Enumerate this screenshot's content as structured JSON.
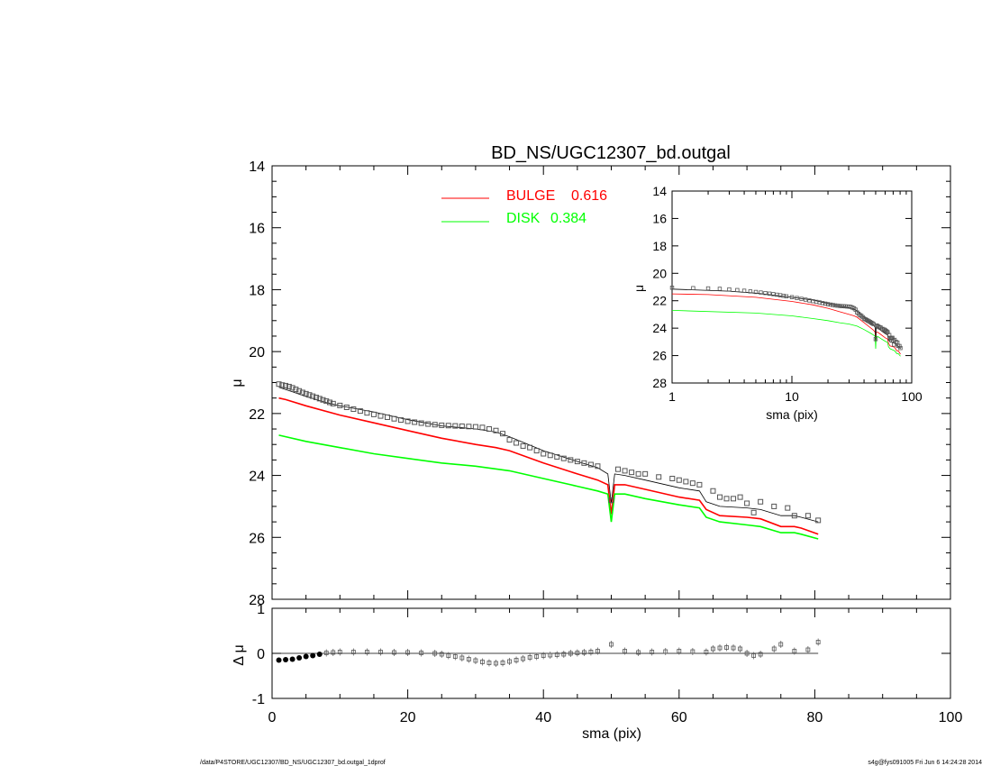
{
  "chart_data": [
    {
      "type": "line",
      "title": "BD_NS/UGC12307_bd.outgal",
      "xlabel": "sma (pix)",
      "ylabel": "μ",
      "xlim": [
        0,
        100
      ],
      "ylim": [
        28,
        14
      ],
      "y_inverted": true,
      "xticks": [
        "0",
        "20",
        "40",
        "60",
        "80",
        "100"
      ],
      "yticks": [
        "14",
        "16",
        "18",
        "20",
        "22",
        "24",
        "26",
        "28"
      ],
      "legend_position": "top-center",
      "legend": [
        {
          "label": "BULGE",
          "value": "0.616",
          "color": "#ff0000"
        },
        {
          "label": "DISK",
          "value": "0.384",
          "color": "#00ff00"
        }
      ],
      "series": [
        {
          "name": "BULGE",
          "color": "#ff0000",
          "points": [
            [
              1,
              21.5
            ],
            [
              2,
              21.55
            ],
            [
              5,
              21.75
            ],
            [
              10,
              22.05
            ],
            [
              15,
              22.3
            ],
            [
              20,
              22.55
            ],
            [
              25,
              22.8
            ],
            [
              30,
              23.0
            ],
            [
              33,
              23.1
            ],
            [
              35,
              23.2
            ],
            [
              40,
              23.6
            ],
            [
              45,
              23.95
            ],
            [
              48,
              24.15
            ],
            [
              49.5,
              24.3
            ],
            [
              50,
              25.25
            ],
            [
              50.5,
              24.3
            ],
            [
              52,
              24.3
            ],
            [
              55,
              24.45
            ],
            [
              60,
              24.7
            ],
            [
              63,
              24.8
            ],
            [
              64,
              25.1
            ],
            [
              66,
              25.3
            ],
            [
              70,
              25.35
            ],
            [
              72,
              25.4
            ],
            [
              75,
              25.65
            ],
            [
              77,
              25.65
            ],
            [
              78,
              25.7
            ],
            [
              80.5,
              25.9
            ]
          ]
        },
        {
          "name": "DISK",
          "color": "#00ff00",
          "points": [
            [
              1,
              22.7
            ],
            [
              5,
              22.9
            ],
            [
              10,
              23.1
            ],
            [
              15,
              23.3
            ],
            [
              20,
              23.45
            ],
            [
              25,
              23.6
            ],
            [
              30,
              23.7
            ],
            [
              35,
              23.85
            ],
            [
              40,
              24.1
            ],
            [
              45,
              24.35
            ],
            [
              48,
              24.5
            ],
            [
              49.5,
              24.6
            ],
            [
              50,
              25.5
            ],
            [
              50.5,
              24.6
            ],
            [
              52,
              24.6
            ],
            [
              55,
              24.75
            ],
            [
              60,
              24.95
            ],
            [
              63,
              25.05
            ],
            [
              64,
              25.35
            ],
            [
              66,
              25.5
            ],
            [
              70,
              25.6
            ],
            [
              72,
              25.65
            ],
            [
              75,
              25.85
            ],
            [
              77,
              25.85
            ],
            [
              78,
              25.9
            ],
            [
              80.5,
              26.05
            ]
          ]
        },
        {
          "name": "total model",
          "color": "#000000",
          "points": [
            [
              1,
              21.15
            ],
            [
              3,
              21.3
            ],
            [
              5,
              21.45
            ],
            [
              8,
              21.65
            ],
            [
              10,
              21.75
            ],
            [
              15,
              21.95
            ],
            [
              20,
              22.2
            ],
            [
              25,
              22.4
            ],
            [
              30,
              22.5
            ],
            [
              33,
              22.6
            ],
            [
              35,
              22.75
            ],
            [
              40,
              23.2
            ],
            [
              45,
              23.55
            ],
            [
              48,
              23.75
            ],
            [
              49.5,
              23.95
            ],
            [
              50,
              24.9
            ],
            [
              50.5,
              23.95
            ],
            [
              52,
              24.0
            ],
            [
              55,
              24.15
            ],
            [
              60,
              24.4
            ],
            [
              63,
              24.5
            ],
            [
              64,
              24.85
            ],
            [
              66,
              25.0
            ],
            [
              70,
              25.05
            ],
            [
              72,
              25.1
            ],
            [
              75,
              25.3
            ],
            [
              77,
              25.3
            ],
            [
              78,
              25.35
            ],
            [
              80.5,
              25.5
            ]
          ]
        },
        {
          "name": "data",
          "points": [
            [
              1,
              21.05
            ],
            [
              1.5,
              21.08
            ],
            [
              2,
              21.1
            ],
            [
              2.5,
              21.13
            ],
            [
              3,
              21.17
            ],
            [
              3.5,
              21.22
            ],
            [
              4,
              21.27
            ],
            [
              4.5,
              21.32
            ],
            [
              5,
              21.36
            ],
            [
              5.5,
              21.4
            ],
            [
              6,
              21.44
            ],
            [
              6.5,
              21.48
            ],
            [
              7,
              21.52
            ],
            [
              7.5,
              21.56
            ],
            [
              8,
              21.6
            ],
            [
              8.5,
              21.64
            ],
            [
              9,
              21.68
            ],
            [
              10,
              21.74
            ],
            [
              11,
              21.8
            ],
            [
              12,
              21.86
            ],
            [
              13,
              21.92
            ],
            [
              14,
              21.98
            ],
            [
              15,
              22.03
            ],
            [
              16,
              22.08
            ],
            [
              17,
              22.12
            ],
            [
              18,
              22.17
            ],
            [
              19,
              22.21
            ],
            [
              20,
              22.25
            ],
            [
              21,
              22.28
            ],
            [
              22,
              22.31
            ],
            [
              23,
              22.34
            ],
            [
              24,
              22.36
            ],
            [
              25,
              22.38
            ],
            [
              26,
              22.39
            ],
            [
              27,
              22.4
            ],
            [
              28,
              22.41
            ],
            [
              29,
              22.42
            ],
            [
              30,
              22.43
            ],
            [
              31,
              22.45
            ],
            [
              32,
              22.5
            ],
            [
              33,
              22.55
            ],
            [
              34,
              22.65
            ],
            [
              35,
              22.85
            ],
            [
              36,
              22.95
            ],
            [
              37,
              23.05
            ],
            [
              38,
              23.1
            ],
            [
              39,
              23.2
            ],
            [
              40,
              23.3
            ],
            [
              41,
              23.35
            ],
            [
              42,
              23.4
            ],
            [
              43,
              23.45
            ],
            [
              44,
              23.5
            ],
            [
              45,
              23.55
            ],
            [
              46,
              23.6
            ],
            [
              47,
              23.65
            ],
            [
              48,
              23.7
            ],
            [
              50,
              24.8
            ],
            [
              51,
              23.8
            ],
            [
              52,
              23.85
            ],
            [
              53,
              23.9
            ],
            [
              54,
              23.95
            ],
            [
              55,
              23.95
            ],
            [
              57,
              24.05
            ],
            [
              59,
              24.1
            ],
            [
              60,
              24.15
            ],
            [
              61,
              24.2
            ],
            [
              62,
              24.25
            ],
            [
              63,
              24.3
            ],
            [
              65,
              24.5
            ],
            [
              66,
              24.7
            ],
            [
              67,
              24.75
            ],
            [
              68,
              24.75
            ],
            [
              69,
              24.7
            ],
            [
              70,
              24.9
            ],
            [
              71,
              25.2
            ],
            [
              72,
              24.85
            ],
            [
              74,
              25.0
            ],
            [
              76,
              25.05
            ],
            [
              77,
              25.3
            ],
            [
              79,
              25.3
            ],
            [
              80.5,
              25.45
            ]
          ]
        }
      ]
    },
    {
      "type": "line",
      "title": "",
      "xlabel": "sma (pix)",
      "ylabel": "μ",
      "x_scale": "log",
      "xlim": [
        1,
        100
      ],
      "ylim": [
        28,
        14
      ],
      "y_inverted": true,
      "xticks": [
        "1",
        "10",
        "100"
      ],
      "yticks": [
        "14",
        "16",
        "18",
        "20",
        "22",
        "24",
        "26",
        "28"
      ],
      "position": "inset"
    },
    {
      "type": "scatter",
      "title": "",
      "xlabel": "sma (pix)",
      "ylabel": "Δ μ",
      "xlim": [
        0,
        100
      ],
      "ylim": [
        -1,
        1
      ],
      "xticks": [
        "0",
        "20",
        "40",
        "60",
        "80",
        "100"
      ],
      "yticks": [
        "1",
        "0",
        "-1"
      ],
      "reference_line": 0,
      "series": [
        {
          "name": "residual",
          "points": [
            [
              1,
              -0.15
            ],
            [
              2,
              -0.14
            ],
            [
              3,
              -0.13
            ],
            [
              4,
              -0.1
            ],
            [
              5,
              -0.07
            ],
            [
              6,
              -0.05
            ],
            [
              7,
              -0.02
            ],
            [
              8,
              0.01
            ],
            [
              9,
              0.02
            ],
            [
              10,
              0.03
            ],
            [
              12,
              0.03
            ],
            [
              14,
              0.03
            ],
            [
              16,
              0.03
            ],
            [
              18,
              0.02
            ],
            [
              20,
              0.02
            ],
            [
              22,
              0.01
            ],
            [
              24,
              0.0
            ],
            [
              25,
              -0.02
            ],
            [
              26,
              -0.05
            ],
            [
              27,
              -0.07
            ],
            [
              28,
              -0.1
            ],
            [
              29,
              -0.13
            ],
            [
              30,
              -0.16
            ],
            [
              31,
              -0.19
            ],
            [
              32,
              -0.21
            ],
            [
              33,
              -0.22
            ],
            [
              34,
              -0.21
            ],
            [
              35,
              -0.18
            ],
            [
              36,
              -0.15
            ],
            [
              37,
              -0.12
            ],
            [
              38,
              -0.09
            ],
            [
              39,
              -0.07
            ],
            [
              40,
              -0.05
            ],
            [
              41,
              -0.04
            ],
            [
              42,
              -0.03
            ],
            [
              43,
              -0.02
            ],
            [
              44,
              0.0
            ],
            [
              45,
              0.01
            ],
            [
              46,
              0.02
            ],
            [
              47,
              0.03
            ],
            [
              48,
              0.05
            ],
            [
              50,
              0.2
            ],
            [
              52,
              0.05
            ],
            [
              54,
              0.02
            ],
            [
              56,
              0.03
            ],
            [
              58,
              0.04
            ],
            [
              60,
              0.05
            ],
            [
              62,
              0.04
            ],
            [
              64,
              0.03
            ],
            [
              65,
              0.1
            ],
            [
              66,
              0.12
            ],
            [
              67,
              0.13
            ],
            [
              68,
              0.12
            ],
            [
              69,
              0.1
            ],
            [
              70,
              0.0
            ],
            [
              71,
              -0.05
            ],
            [
              72,
              -0.02
            ],
            [
              74,
              0.1
            ],
            [
              75,
              0.2
            ],
            [
              77,
              0.05
            ],
            [
              79,
              0.08
            ],
            [
              80.5,
              0.25
            ]
          ]
        }
      ]
    }
  ],
  "footer": {
    "left": "/data/P4STORE/UGC12307/BD_NS/UGC12307_bd.outgal_1dprof",
    "right": "s4g@fys091005  Fri Jun  6 14:24:28 2014"
  }
}
